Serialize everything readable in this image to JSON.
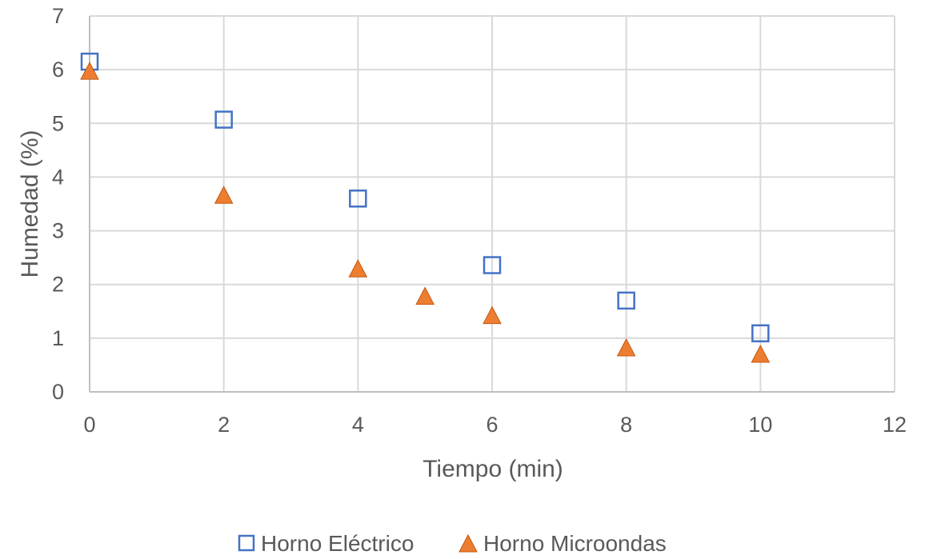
{
  "chart_data": {
    "type": "scatter",
    "xlabel": "Tiempo  (min)",
    "ylabel": "Humedad (%)",
    "xlim": [
      0,
      12
    ],
    "ylim": [
      0,
      7
    ],
    "xticks": [
      "0",
      "2",
      "4",
      "6",
      "8",
      "10",
      "12"
    ],
    "yticks": [
      "0",
      "1",
      "2",
      "3",
      "4",
      "5",
      "6",
      "7"
    ],
    "grid": true,
    "legend_position": "bottom",
    "series": [
      {
        "name": "Horno Eléctrico",
        "marker": "square-open",
        "color": "#4472C4",
        "points": [
          [
            0,
            6.15
          ],
          [
            2,
            5.07
          ],
          [
            4,
            3.6
          ],
          [
            6,
            2.36
          ],
          [
            8,
            1.7
          ],
          [
            10,
            1.09
          ]
        ]
      },
      {
        "name": "Horno Microondas",
        "marker": "triangle",
        "color": "#ED7D31",
        "points": [
          [
            0,
            5.97
          ],
          [
            2,
            3.66
          ],
          [
            4,
            2.29
          ],
          [
            5,
            1.78
          ],
          [
            6,
            1.42
          ],
          [
            8,
            0.82
          ],
          [
            10,
            0.7
          ]
        ]
      }
    ]
  }
}
